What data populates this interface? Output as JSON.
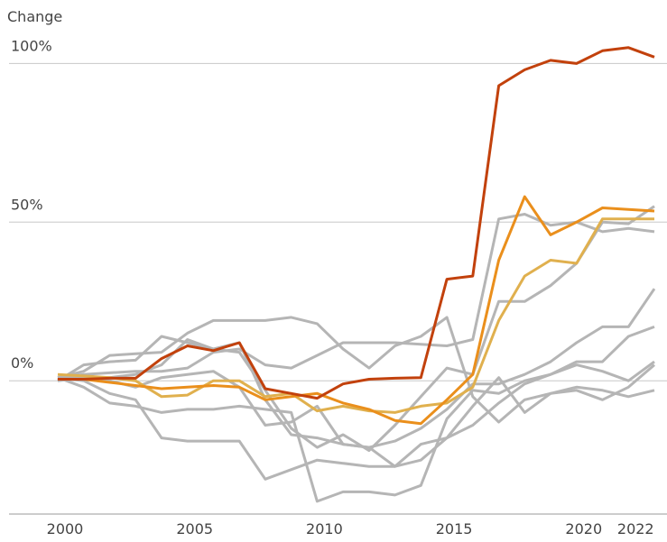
{
  "chart_data": {
    "type": "line",
    "y_label": "Change",
    "x": [
      2000,
      2001,
      2002,
      2003,
      2004,
      2005,
      2006,
      2007,
      2008,
      2009,
      2010,
      2011,
      2012,
      2013,
      2014,
      2015,
      2016,
      2017,
      2018,
      2019,
      2020,
      2021,
      2022,
      2023
    ],
    "xlim": [
      2000,
      2023
    ],
    "xticks": [
      2000,
      2005,
      2010,
      2015,
      2020,
      2022
    ],
    "ylim": [
      -42,
      120
    ],
    "yticks": [
      {
        "value": 0,
        "label": "0%"
      },
      {
        "value": 50,
        "label": "50%"
      },
      {
        "value": 100,
        "label": "100%"
      }
    ],
    "grid": true,
    "series": [
      {
        "color": "#b5b5b5",
        "values": [
          1,
          2,
          2.5,
          3,
          3,
          4,
          9,
          10,
          5,
          4,
          8,
          12,
          12,
          12,
          11.5,
          11,
          13,
          51,
          52.5,
          49,
          50,
          47,
          48,
          47
        ]
      },
      {
        "color": "#b5b5b5",
        "values": [
          0,
          5,
          6,
          6.5,
          14,
          12,
          10,
          9,
          -3,
          -15,
          -21,
          -17,
          -22,
          -14,
          -5,
          4,
          2,
          25,
          25,
          30,
          37,
          50,
          49.5,
          55
        ]
      },
      {
        "color": "#b5b5b5",
        "values": [
          1,
          3,
          8,
          8.5,
          9,
          15,
          19,
          19,
          19,
          20,
          18,
          10,
          4,
          11,
          14,
          20,
          -5,
          -13,
          -6,
          -4,
          -3,
          -6,
          -2,
          5
        ]
      },
      {
        "color": "#b5b5b5",
        "values": [
          1,
          0,
          -4,
          -6,
          -18,
          -19,
          -19,
          -19,
          -31,
          -28,
          -25,
          -26,
          -27,
          -27,
          -25,
          -18,
          -14,
          -7,
          -1,
          2,
          5,
          3,
          0,
          6
        ]
      },
      {
        "color": "#b5b5b5",
        "values": [
          1,
          -2,
          -7,
          -8,
          -10,
          -9,
          -9,
          -8,
          -9,
          -10,
          -38,
          -35,
          -35,
          -36,
          -33,
          -12,
          -3,
          -4,
          0,
          2,
          6,
          6,
          14,
          17
        ]
      },
      {
        "color": "#b5b5b5",
        "values": [
          0,
          2,
          0,
          -2,
          1,
          2,
          3,
          -2,
          -14,
          -13,
          -8,
          -20,
          -21,
          -19,
          -15,
          -9,
          -1,
          -1,
          2,
          6,
          12,
          17,
          17,
          29
        ]
      },
      {
        "color": "#b5b5b5",
        "values": [
          0,
          1,
          1,
          2,
          5,
          13,
          10,
          12,
          -6,
          -17,
          -18,
          -20,
          -21,
          -27,
          -20,
          -18,
          -8,
          1,
          -10,
          -4,
          -2,
          -3,
          -5,
          -3
        ]
      },
      {
        "color": "#e0b04e",
        "values": [
          2,
          1.5,
          1,
          0,
          -5,
          -4.5,
          0,
          0,
          -5,
          -4,
          -9.5,
          -8,
          -9.5,
          -10,
          -8,
          -7,
          -2,
          19,
          33,
          38,
          37,
          51,
          51,
          51
        ]
      },
      {
        "color": "#ea8f1c",
        "values": [
          0.5,
          0.5,
          -0.5,
          -1.5,
          -2.5,
          -2,
          -1.5,
          -2,
          -6,
          -5,
          -4,
          -7,
          -9,
          -12.5,
          -13.5,
          -6,
          2,
          38,
          58,
          46,
          50,
          54.5,
          54,
          53.5
        ]
      },
      {
        "color": "#c2410c",
        "values": [
          0.5,
          0.5,
          0.8,
          0.8,
          7,
          11,
          9.5,
          12,
          -2.5,
          -4,
          -5.5,
          -1,
          0.5,
          0.8,
          1,
          32,
          33,
          93,
          98,
          101,
          100,
          104,
          105,
          102
        ]
      }
    ]
  }
}
